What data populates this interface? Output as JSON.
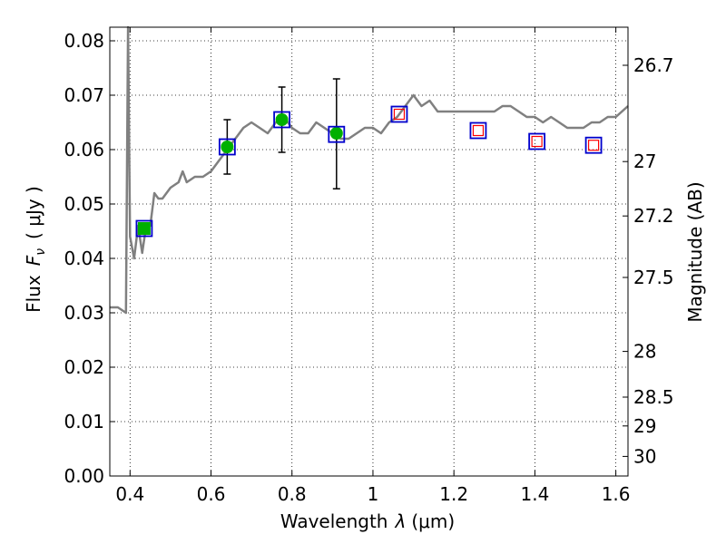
{
  "chart_data": {
    "type": "scatter",
    "xlabel": "Wavelength",
    "xlabel_symbol": "λ",
    "xlabel_unit": "(μm)",
    "ylabel": "Flux",
    "ylabel_symbol": "F",
    "ylabel_subscript": "ν",
    "ylabel_unit": "( μJy )",
    "ylabel_right": "Magnitude (AB)",
    "xlim": [
      0.35,
      1.63
    ],
    "ylim": [
      0.0,
      0.0825
    ],
    "grid": true,
    "x_ticks": [
      0.4,
      0.6,
      0.8,
      1.0,
      1.2,
      1.4,
      1.6
    ],
    "x_tick_labels": [
      "0.4",
      "0.6",
      "0.8",
      "1",
      "1.2",
      "1.4",
      "1.6"
    ],
    "y_ticks": [
      0.0,
      0.01,
      0.02,
      0.03,
      0.04,
      0.05,
      0.06,
      0.07,
      0.08
    ],
    "y_tick_labels": [
      "0.00",
      "0.01",
      "0.02",
      "0.03",
      "0.04",
      "0.05",
      "0.06",
      "0.07",
      "0.08"
    ],
    "right_ticks": [
      {
        "label": "26.7",
        "flux": 0.0755
      },
      {
        "label": "27",
        "flux": 0.0578
      },
      {
        "label": "27.2",
        "flux": 0.0478
      },
      {
        "label": "27.5",
        "flux": 0.0365
      },
      {
        "label": "28",
        "flux": 0.0229
      },
      {
        "label": "28.5",
        "flux": 0.0145
      },
      {
        "label": "29",
        "flux": 0.0092
      },
      {
        "label": "30",
        "flux": 0.0036
      }
    ],
    "series": [
      {
        "kind": "model-spectrum",
        "color": "#808080",
        "x": [
          0.35,
          0.37,
          0.39,
          0.395,
          0.4,
          0.41,
          0.42,
          0.43,
          0.44,
          0.45,
          0.46,
          0.47,
          0.48,
          0.5,
          0.52,
          0.53,
          0.54,
          0.56,
          0.58,
          0.6,
          0.62,
          0.64,
          0.66,
          0.68,
          0.7,
          0.72,
          0.74,
          0.76,
          0.78,
          0.8,
          0.82,
          0.84,
          0.86,
          0.88,
          0.9,
          0.92,
          0.94,
          0.96,
          0.98,
          1.0,
          1.02,
          1.04,
          1.06,
          1.08,
          1.1,
          1.12,
          1.14,
          1.16,
          1.18,
          1.2,
          1.22,
          1.24,
          1.26,
          1.28,
          1.3,
          1.32,
          1.34,
          1.36,
          1.38,
          1.4,
          1.42,
          1.44,
          1.46,
          1.48,
          1.5,
          1.52,
          1.54,
          1.56,
          1.58,
          1.6,
          1.63
        ],
        "y": [
          0.031,
          0.031,
          0.03,
          0.0825,
          0.044,
          0.04,
          0.046,
          0.041,
          0.046,
          0.046,
          0.052,
          0.051,
          0.051,
          0.053,
          0.054,
          0.056,
          0.054,
          0.055,
          0.055,
          0.056,
          0.058,
          0.06,
          0.062,
          0.064,
          0.065,
          0.064,
          0.063,
          0.065,
          0.066,
          0.064,
          0.063,
          0.063,
          0.065,
          0.064,
          0.063,
          0.062,
          0.062,
          0.063,
          0.064,
          0.064,
          0.063,
          0.065,
          0.066,
          0.068,
          0.07,
          0.068,
          0.069,
          0.067,
          0.067,
          0.067,
          0.067,
          0.067,
          0.067,
          0.067,
          0.067,
          0.068,
          0.068,
          0.067,
          0.066,
          0.066,
          0.065,
          0.066,
          0.065,
          0.064,
          0.064,
          0.064,
          0.065,
          0.065,
          0.066,
          0.066,
          0.068
        ]
      },
      {
        "kind": "measured-flux",
        "marker": "circle",
        "color": "#00b000",
        "x": [
          0.64,
          0.775,
          0.91
        ],
        "y": [
          0.0605,
          0.0655,
          0.063
        ],
        "yerr_low": [
          0.0555,
          0.0595,
          0.0528
        ],
        "yerr_high": [
          0.0655,
          0.0715,
          0.073
        ]
      },
      {
        "kind": "measured-flux",
        "marker": "square",
        "color": "#00b000",
        "x": [
          0.435
        ],
        "y": [
          0.0455
        ]
      },
      {
        "kind": "model-band-flux",
        "marker": "open-square",
        "color": "#0000cc",
        "x": [
          0.435,
          0.64,
          0.775,
          0.91,
          1.065,
          1.26,
          1.405,
          1.545
        ],
        "y": [
          0.0455,
          0.0605,
          0.0655,
          0.0628,
          0.0665,
          0.0635,
          0.0615,
          0.0608
        ]
      },
      {
        "kind": "upper-limit",
        "marker": "open-square",
        "color": "#ff0000",
        "x": [
          1.065,
          1.26,
          1.405,
          1.545
        ],
        "y": [
          0.0665,
          0.0635,
          0.0615,
          0.0608
        ]
      }
    ]
  }
}
